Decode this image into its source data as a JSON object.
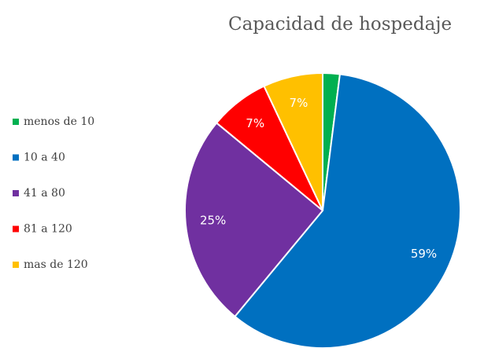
{
  "chart_data": {
    "type": "pie",
    "title": "Capacidad de hospedaje",
    "categories": [
      "menos de 10",
      "10 a 40",
      "41 a 80",
      "81 a 120",
      "mas de 120"
    ],
    "values": [
      2,
      59,
      25,
      7,
      7
    ],
    "value_labels": [
      null,
      "59%",
      "25%",
      "7%",
      "7%"
    ],
    "colors": [
      "#00b050",
      "#0070c0",
      "#7030a0",
      "#ff0000",
      "#ffc000"
    ],
    "legend": "left"
  }
}
